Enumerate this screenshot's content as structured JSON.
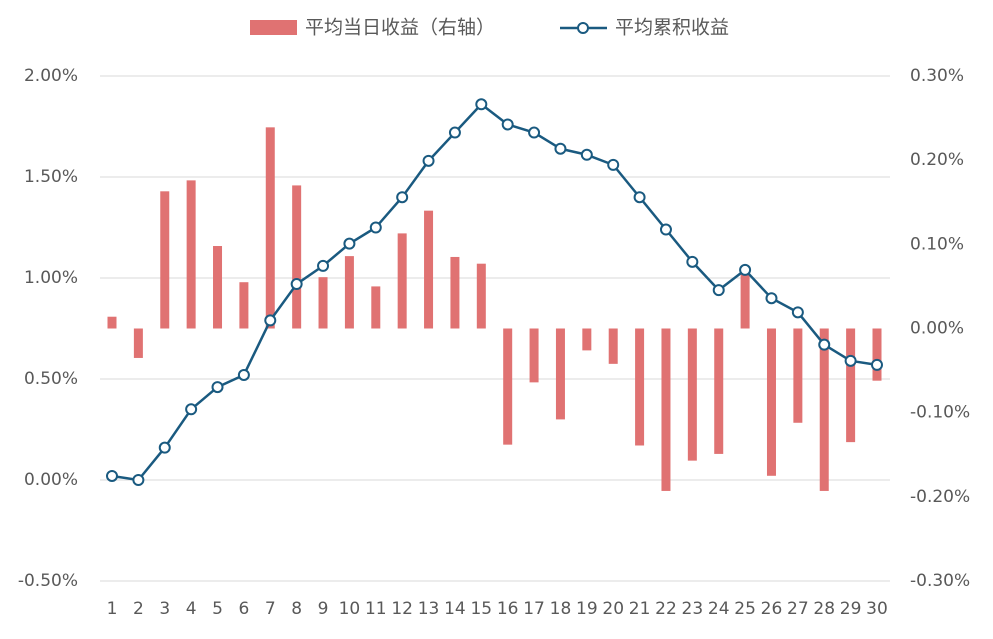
{
  "chart_data": {
    "type": "bar_line",
    "categories": [
      "1",
      "2",
      "3",
      "4",
      "5",
      "6",
      "7",
      "8",
      "9",
      "10",
      "11",
      "12",
      "13",
      "14",
      "15",
      "16",
      "17",
      "18",
      "19",
      "20",
      "21",
      "22",
      "23",
      "24",
      "25",
      "26",
      "27",
      "28",
      "29",
      "30"
    ],
    "series": [
      {
        "name": "平均当日收益（右轴）",
        "type": "bar",
        "axis": "y2",
        "color": "#e07272",
        "values": [
          0.014,
          -0.035,
          0.163,
          0.176,
          0.098,
          0.055,
          0.239,
          0.17,
          0.061,
          0.086,
          0.05,
          0.113,
          0.14,
          0.085,
          0.077,
          -0.138,
          -0.064,
          -0.108,
          -0.026,
          -0.042,
          -0.139,
          -0.193,
          -0.157,
          -0.149,
          0.07,
          -0.175,
          -0.112,
          -0.193,
          -0.135,
          -0.062
        ]
      },
      {
        "name": "平均累积收益",
        "type": "line",
        "color": "#1a5a80",
        "values": [
          0.02,
          0.0,
          0.16,
          0.35,
          0.46,
          0.52,
          0.79,
          0.97,
          1.06,
          1.17,
          1.25,
          1.4,
          1.58,
          1.72,
          1.86,
          1.76,
          1.72,
          1.64,
          1.61,
          1.56,
          1.4,
          1.24,
          1.08,
          0.94,
          1.04,
          0.9,
          0.83,
          0.67,
          0.59,
          0.57
        ]
      }
    ],
    "ylim": [
      -0.5,
      2.0
    ],
    "yticks": [
      {
        "value": -0.5,
        "label": "-0.50%"
      },
      {
        "value": 0,
        "label": "0.00%"
      },
      {
        "value": 0.5,
        "label": "0.50%"
      },
      {
        "value": 1.0,
        "label": "1.00%"
      },
      {
        "value": 1.5,
        "label": "1.50%"
      },
      {
        "value": 2.0,
        "label": "2.00%"
      }
    ],
    "y2lim": [
      -0.3,
      0.3
    ],
    "y2ticks": [
      {
        "value": -0.3,
        "label": "-0.30%"
      },
      {
        "value": -0.2,
        "label": "-0.20%"
      },
      {
        "value": -0.1,
        "label": "-0.10%"
      },
      {
        "value": 0,
        "label": "0.00%"
      },
      {
        "value": 0.1,
        "label": "0.10%"
      },
      {
        "value": 0.2,
        "label": "0.20%"
      },
      {
        "value": 0.3,
        "label": "0.30%"
      }
    ],
    "grid": true,
    "legend": "top"
  }
}
